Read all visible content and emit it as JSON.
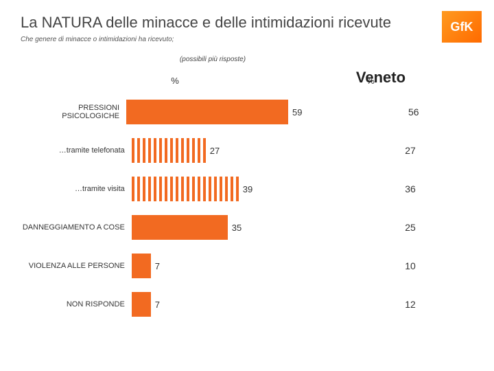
{
  "title": "La NATURA delle minacce e delle intimidazioni ricevute",
  "subtitle": "Che genere di minacce o intimidazioni ha ricevuto;",
  "note": "(possibili più risposte)",
  "veneto_header": "Veneto",
  "columns": {
    "left": "%",
    "right": "%"
  },
  "logo": {
    "text": "GfK",
    "bg": "linear-gradient(135deg,#ff9a1f 0%,#ff6a00 100%)"
  },
  "chart": {
    "type": "bar",
    "max": 65,
    "bar_colors": {
      "solid": "#f26a21",
      "hatched_fg": "#f26a21",
      "hatched_bg": "#ffffff"
    },
    "rows": [
      {
        "label": "PRESSIONI PSICOLOGICHE",
        "value": 59,
        "style": "solid",
        "veneto": 56
      },
      {
        "label": "…tramite telefonata",
        "value": 27,
        "style": "hatched",
        "veneto": 27
      },
      {
        "label": "…tramite visita",
        "value": 39,
        "style": "hatched",
        "veneto": 36
      },
      {
        "label": "DANNEGGIAMENTO A COSE",
        "value": 35,
        "style": "solid",
        "veneto": 25
      },
      {
        "label": "VIOLENZA ALLE PERSONE",
        "value": 7,
        "style": "solid",
        "veneto": 10
      },
      {
        "label": "NON RISPONDE",
        "value": 7,
        "style": "solid",
        "veneto": 12
      }
    ]
  }
}
